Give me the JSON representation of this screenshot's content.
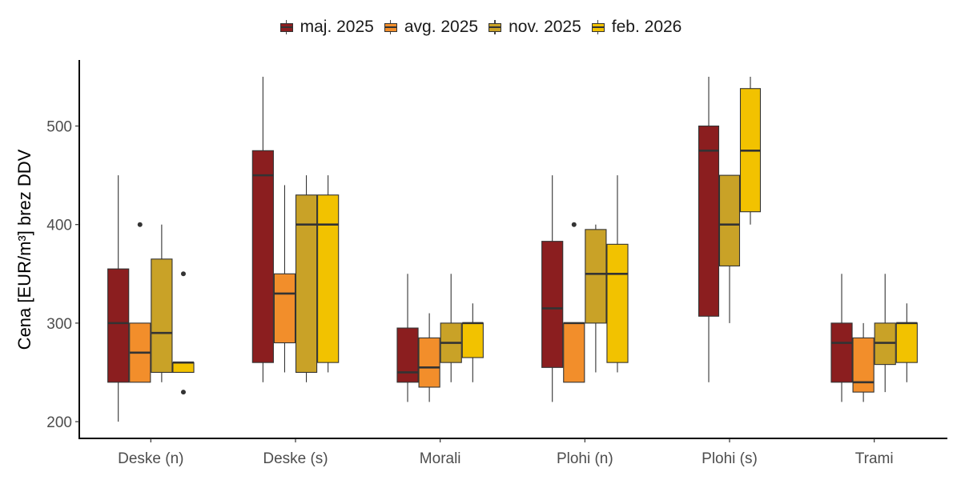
{
  "chart_data": {
    "type": "boxplot",
    "title": "",
    "xlabel": "",
    "ylabel": "Cena [EUR/m³] brez DDV",
    "ylim": [
      183,
      567
    ],
    "yticks": [
      200,
      300,
      400,
      500
    ],
    "grid": false,
    "legend_position": "top",
    "categories": [
      "Deske (n)",
      "Deske (s)",
      "Morali",
      "Plohi (n)",
      "Plohi (s)",
      "Trami"
    ],
    "series": [
      {
        "name": "maj. 2025",
        "color": "#8B1E1F"
      },
      {
        "name": "avg. 2025",
        "color": "#F28E2B"
      },
      {
        "name": "nov. 2025",
        "color": "#C9A227"
      },
      {
        "name": "feb. 2026",
        "color": "#F2C200"
      }
    ],
    "groups": [
      {
        "category": "Deske (n)",
        "boxes": [
          {
            "series": "maj. 2025",
            "min": 200,
            "q1": 240,
            "median": 300,
            "q3": 355,
            "max": 450,
            "outliers": []
          },
          {
            "series": "avg. 2025",
            "min": 240,
            "q1": 240,
            "median": 270,
            "q3": 300,
            "max": 300,
            "outliers": [
              400
            ]
          },
          {
            "series": "nov. 2025",
            "min": 240,
            "q1": 250,
            "median": 290,
            "q3": 365,
            "max": 400,
            "outliers": []
          },
          {
            "series": "feb. 2026",
            "min": 250,
            "q1": 250,
            "median": 260,
            "q3": 260,
            "max": 260,
            "outliers": [
              350,
              230
            ]
          }
        ]
      },
      {
        "category": "Deske (s)",
        "boxes": [
          {
            "series": "maj. 2025",
            "min": 240,
            "q1": 260,
            "median": 450,
            "q3": 475,
            "max": 550,
            "outliers": []
          },
          {
            "series": "avg. 2025",
            "min": 250,
            "q1": 280,
            "median": 330,
            "q3": 350,
            "max": 440,
            "outliers": []
          },
          {
            "series": "nov. 2025",
            "min": 240,
            "q1": 250,
            "median": 400,
            "q3": 430,
            "max": 450,
            "outliers": []
          },
          {
            "series": "feb. 2026",
            "min": 250,
            "q1": 260,
            "median": 400,
            "q3": 430,
            "max": 450,
            "outliers": []
          }
        ]
      },
      {
        "category": "Morali",
        "boxes": [
          {
            "series": "maj. 2025",
            "min": 220,
            "q1": 240,
            "median": 250,
            "q3": 295,
            "max": 350,
            "outliers": []
          },
          {
            "series": "avg. 2025",
            "min": 220,
            "q1": 235,
            "median": 255,
            "q3": 285,
            "max": 310,
            "outliers": []
          },
          {
            "series": "nov. 2025",
            "min": 240,
            "q1": 260,
            "median": 280,
            "q3": 300,
            "max": 350,
            "outliers": []
          },
          {
            "series": "feb. 2026",
            "min": 240,
            "q1": 265,
            "median": 300,
            "q3": 300,
            "max": 320,
            "outliers": []
          }
        ]
      },
      {
        "category": "Plohi (n)",
        "boxes": [
          {
            "series": "maj. 2025",
            "min": 220,
            "q1": 255,
            "median": 315,
            "q3": 383,
            "max": 450,
            "outliers": []
          },
          {
            "series": "avg. 2025",
            "min": 240,
            "q1": 240,
            "median": 300,
            "q3": 300,
            "max": 300,
            "outliers": [
              400
            ]
          },
          {
            "series": "nov. 2025",
            "min": 250,
            "q1": 300,
            "median": 350,
            "q3": 395,
            "max": 400,
            "outliers": []
          },
          {
            "series": "feb. 2026",
            "min": 250,
            "q1": 260,
            "median": 350,
            "q3": 380,
            "max": 450,
            "outliers": []
          }
        ]
      },
      {
        "category": "Plohi (s)",
        "boxes": [
          {
            "series": "maj. 2025",
            "min": 240,
            "q1": 307,
            "median": 475,
            "q3": 500,
            "max": 550,
            "outliers": []
          },
          {
            "series": "nov. 2025",
            "min": 300,
            "q1": 358,
            "median": 400,
            "q3": 450,
            "max": 450,
            "outliers": []
          },
          {
            "series": "feb. 2026",
            "min": 400,
            "q1": 413,
            "median": 475,
            "q3": 538,
            "max": 550,
            "outliers": []
          }
        ]
      },
      {
        "category": "Trami",
        "boxes": [
          {
            "series": "maj. 2025",
            "min": 220,
            "q1": 240,
            "median": 280,
            "q3": 300,
            "max": 350,
            "outliers": []
          },
          {
            "series": "avg. 2025",
            "min": 220,
            "q1": 230,
            "median": 240,
            "q3": 285,
            "max": 300,
            "outliers": []
          },
          {
            "series": "nov. 2025",
            "min": 230,
            "q1": 258,
            "median": 280,
            "q3": 300,
            "max": 350,
            "outliers": []
          },
          {
            "series": "feb. 2026",
            "min": 240,
            "q1": 260,
            "median": 300,
            "q3": 300,
            "max": 320,
            "outliers": []
          }
        ]
      }
    ]
  },
  "legend": {
    "items": [
      {
        "label": "maj. 2025",
        "color": "#8B1E1F"
      },
      {
        "label": "avg. 2025",
        "color": "#F28E2B"
      },
      {
        "label": "nov. 2025",
        "color": "#C9A227"
      },
      {
        "label": "feb. 2026",
        "color": "#F2C200"
      }
    ]
  }
}
